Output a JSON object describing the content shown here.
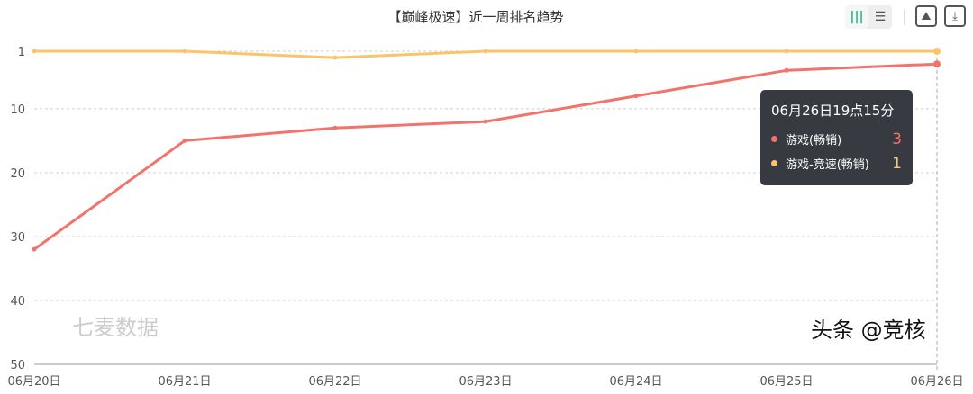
{
  "title": "【巅峰极速】近一周排名趋势",
  "toolbar": {
    "chart_mode_icon": "bar-chart-icon",
    "list_mode_icon": "list-icon",
    "save_image_icon": "image-icon",
    "download_icon": "download-icon"
  },
  "watermark": "七麦数据",
  "credit": "头条 @竞核",
  "tooltip": {
    "title": "06月26日19点15分",
    "rows": [
      {
        "name": "游戏(畅销)",
        "value": "3",
        "color": "#f2736b"
      },
      {
        "name": "游戏-竞速(畅销)",
        "value": "1",
        "color": "#fbc46a"
      }
    ]
  },
  "chart_data": {
    "type": "line",
    "title": "【巅峰极速】近一周排名趋势",
    "categories": [
      "06月20日",
      "06月21日",
      "06月22日",
      "06月23日",
      "06月24日",
      "06月25日",
      "06月26日"
    ],
    "yticks": [
      1,
      10,
      20,
      30,
      40,
      50
    ],
    "ylim": [
      1,
      50
    ],
    "y_inverted": true,
    "grid": true,
    "series": [
      {
        "name": "游戏(畅销)",
        "color": "#f2736b",
        "values": [
          32,
          15,
          13,
          12,
          8,
          4,
          3
        ]
      },
      {
        "name": "游戏-竞速(畅销)",
        "color": "#fbc46a",
        "values": [
          1,
          1,
          2,
          1,
          1,
          1,
          1
        ]
      }
    ]
  }
}
